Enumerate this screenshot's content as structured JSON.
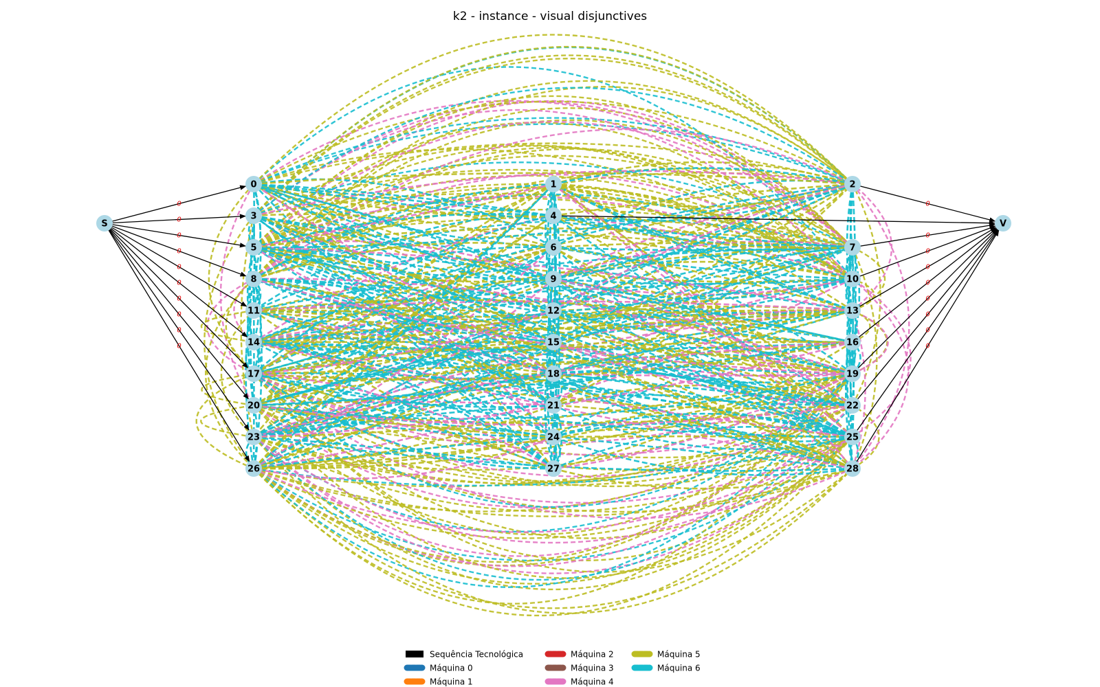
{
  "title": "k2 - instance - visual disjunctives",
  "source_node": "S",
  "sink_node": "V",
  "job_columns": [
    [
      "0",
      "3",
      "5",
      "8",
      "11",
      "14",
      "17",
      "20",
      "23",
      "26"
    ],
    [
      "1",
      "4",
      "6",
      "9",
      "12",
      "15",
      "18",
      "21",
      "24",
      "27"
    ],
    [
      "2",
      "7",
      "10",
      "13",
      "16",
      "19",
      "22",
      "25",
      "28"
    ]
  ],
  "source_targets": [
    "0",
    "3",
    "5",
    "8",
    "11",
    "14",
    "17",
    "20",
    "23",
    "26"
  ],
  "sink_sources": [
    "2",
    "7",
    "10",
    "13",
    "16",
    "19",
    "22",
    "25",
    "28"
  ],
  "sink_extra_source": "4",
  "arc_weight_label": "0",
  "legend": [
    {
      "label": "Sequência Tecnológica",
      "color": "#000000",
      "style": "solid"
    },
    {
      "label": "Máquina 0",
      "color": "#1f77b4",
      "style": "dashed"
    },
    {
      "label": "Máquina 1",
      "color": "#ff7f0e",
      "style": "dashed"
    },
    {
      "label": "Máquina 2",
      "color": "#d62728",
      "style": "dashed"
    },
    {
      "label": "Máquina 3",
      "color": "#8c564b",
      "style": "dashed"
    },
    {
      "label": "Máquina 4",
      "color": "#e377c2",
      "style": "dashed"
    },
    {
      "label": "Máquina 5",
      "color": "#bcbd22",
      "style": "dashed"
    },
    {
      "label": "Máquina 6",
      "color": "#17becf",
      "style": "dashed"
    }
  ],
  "colors": {
    "node_fill": "#add8e6",
    "machine_4": "#e377c2",
    "machine_5": "#bcbd22",
    "machine_6": "#17becf",
    "tech_sequence": "#000000",
    "weight_label": "#e00000"
  }
}
